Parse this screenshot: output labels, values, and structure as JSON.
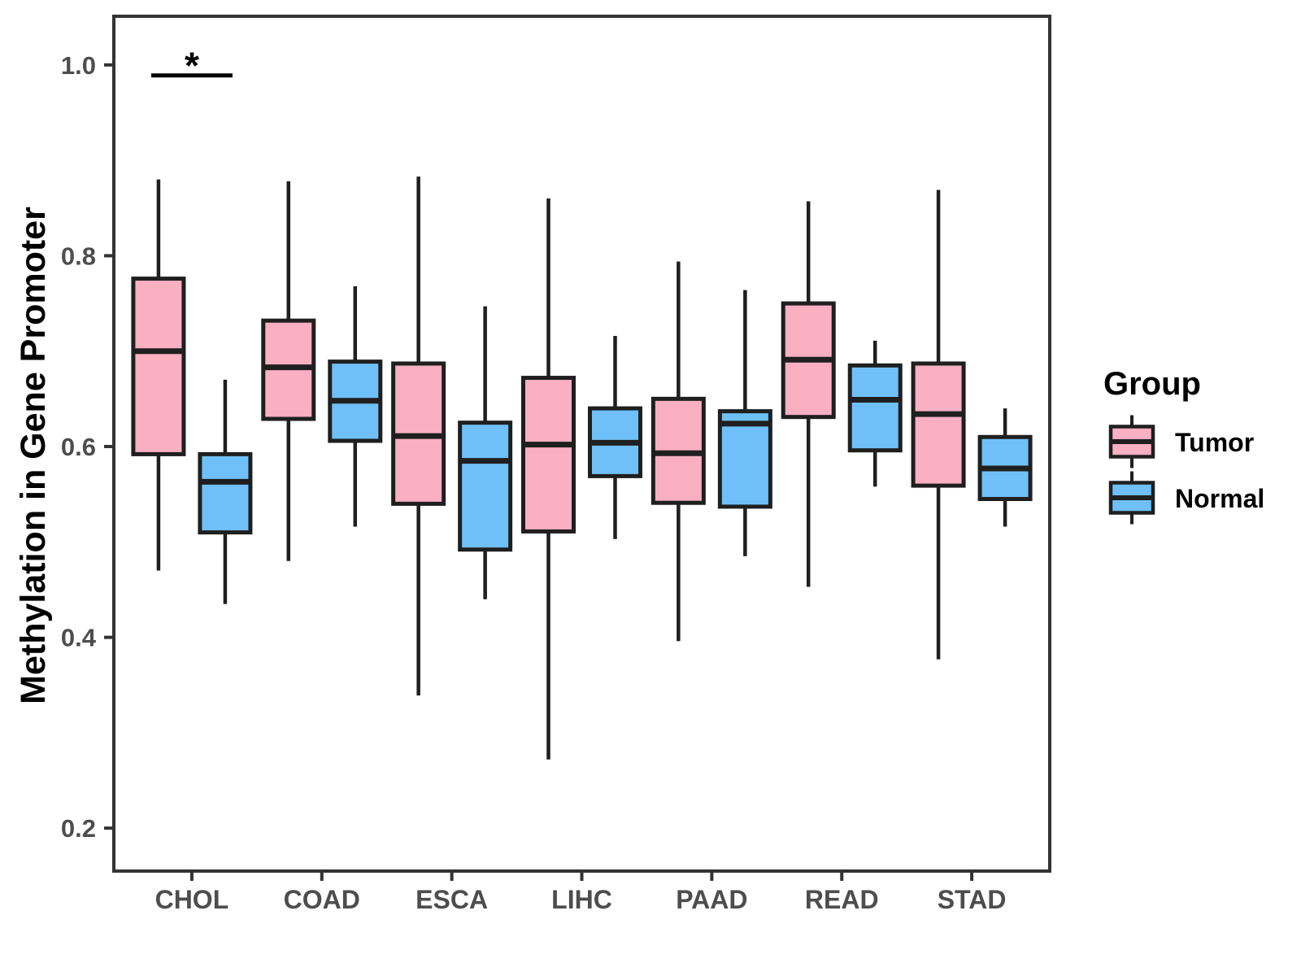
{
  "legend": {
    "title": "Group",
    "position": "right",
    "items": [
      {
        "label": "Tumor",
        "color": "#FAAFC3"
      },
      {
        "label": "Normal",
        "color": "#6FC0F8"
      }
    ]
  },
  "chart_data": {
    "type": "grouped_boxplot",
    "title": "",
    "xlabel": "",
    "ylabel": "Methylation in Gene Promoter",
    "categories": [
      "CHOL",
      "COAD",
      "ESCA",
      "LIHC",
      "PAAD",
      "READ",
      "STAD"
    ],
    "axes": {
      "y_ticks": [
        1.0,
        0.8,
        0.6,
        0.4,
        0.2
      ],
      "y_tick_labels": [
        "1.0",
        "0.8",
        "0.6",
        "0.4",
        "0.2"
      ],
      "y_domain": [
        0.155,
        1.051
      ],
      "grid": "off",
      "panel_border": true
    },
    "style": {
      "box_border_color": "#1F1F1F",
      "axis_line_color": "#333333",
      "tick_label_color": "#4D4D4D",
      "annotation_color": "#000000"
    },
    "series": [
      {
        "name": "Tumor",
        "color": "#FAAFC3",
        "stats": [
          {
            "category": "CHOL",
            "whisker_low": 0.47,
            "q1": 0.592,
            "median": 0.7,
            "q3": 0.776,
            "whisker_high": 0.88
          },
          {
            "category": "COAD",
            "whisker_low": 0.48,
            "q1": 0.629,
            "median": 0.683,
            "q3": 0.732,
            "whisker_high": 0.878
          },
          {
            "category": "ESCA",
            "whisker_low": 0.339,
            "q1": 0.54,
            "median": 0.611,
            "q3": 0.687,
            "whisker_high": 0.883
          },
          {
            "category": "LIHC",
            "whisker_low": 0.272,
            "q1": 0.511,
            "median": 0.602,
            "q3": 0.672,
            "whisker_high": 0.86
          },
          {
            "category": "PAAD",
            "whisker_low": 0.396,
            "q1": 0.541,
            "median": 0.593,
            "q3": 0.65,
            "whisker_high": 0.794
          },
          {
            "category": "READ",
            "whisker_low": 0.453,
            "q1": 0.631,
            "median": 0.691,
            "q3": 0.75,
            "whisker_high": 0.857
          },
          {
            "category": "STAD",
            "whisker_low": 0.377,
            "q1": 0.559,
            "median": 0.634,
            "q3": 0.687,
            "whisker_high": 0.869
          }
        ]
      },
      {
        "name": "Normal",
        "color": "#6FC0F8",
        "stats": [
          {
            "category": "CHOL",
            "whisker_low": 0.435,
            "q1": 0.51,
            "median": 0.563,
            "q3": 0.592,
            "whisker_high": 0.67
          },
          {
            "category": "COAD",
            "whisker_low": 0.516,
            "q1": 0.606,
            "median": 0.648,
            "q3": 0.689,
            "whisker_high": 0.768
          },
          {
            "category": "ESCA",
            "whisker_low": 0.44,
            "q1": 0.492,
            "median": 0.585,
            "q3": 0.625,
            "whisker_high": 0.747
          },
          {
            "category": "LIHC",
            "whisker_low": 0.503,
            "q1": 0.569,
            "median": 0.604,
            "q3": 0.64,
            "whisker_high": 0.716
          },
          {
            "category": "PAAD",
            "whisker_low": 0.485,
            "q1": 0.537,
            "median": 0.624,
            "q3": 0.637,
            "whisker_high": 0.764
          },
          {
            "category": "READ",
            "whisker_low": 0.558,
            "q1": 0.596,
            "median": 0.649,
            "q3": 0.685,
            "whisker_high": 0.711
          },
          {
            "category": "STAD",
            "whisker_low": 0.516,
            "q1": 0.545,
            "median": 0.577,
            "q3": 0.61,
            "whisker_high": 0.64
          }
        ]
      }
    ],
    "annotations": [
      {
        "category": "CHOL",
        "label": "*",
        "bar_y": 0.989,
        "significance": true
      }
    ]
  }
}
